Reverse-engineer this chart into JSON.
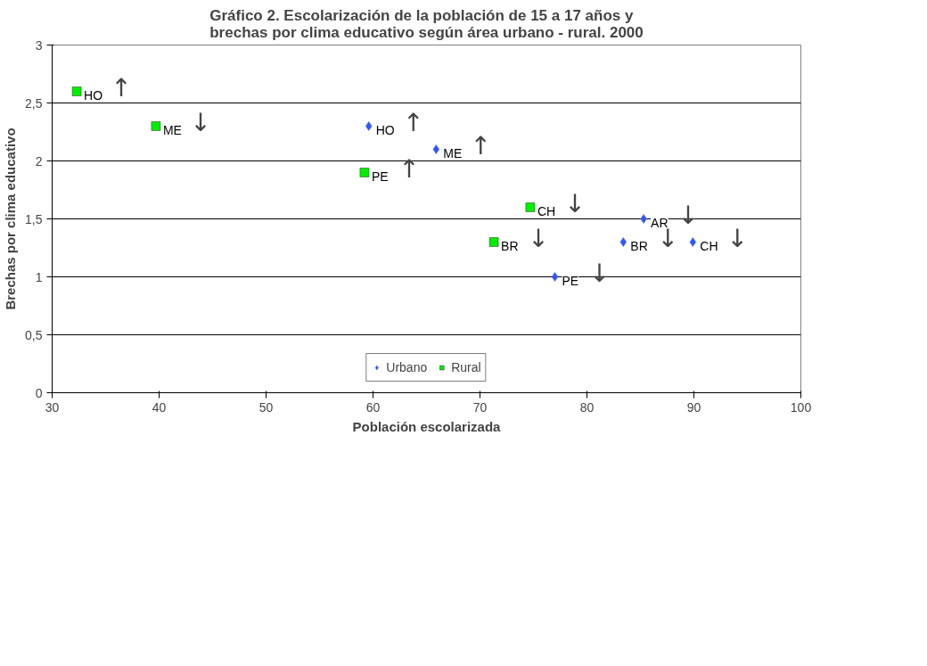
{
  "chart_data": {
    "type": "scatter",
    "title": "Gráfico 2. Escolarización de la población de 15 a 17 años y\nbrechas por clima educativo según área urbano - rural. 2000",
    "xlabel": "Población escolarizada",
    "ylabel": "Brechas por clima educativo",
    "xlim": [
      30,
      100
    ],
    "xticks": [
      30,
      40,
      50,
      60,
      70,
      80,
      90,
      100
    ],
    "ylim": [
      0,
      3
    ],
    "yticks": [
      0,
      {
        "value": 0.5,
        "label": "0,5"
      },
      1,
      {
        "value": 1.5,
        "label": "1,5"
      },
      2,
      {
        "value": 2.5,
        "label": "2,5"
      },
      3
    ],
    "grid": "y",
    "legend": "bottom",
    "annotations": [
      {
        "text": "↑",
        "x": 32.3,
        "y": 2.6
      },
      {
        "text": "↓",
        "x": 39.7,
        "y": 2.3
      },
      {
        "text": "↑",
        "x": 59.6,
        "y": 2.3
      },
      {
        "text": "↑",
        "x": 59.2,
        "y": 1.9
      },
      {
        "text": "↑",
        "x": 65.9,
        "y": 2.1
      },
      {
        "text": "↓",
        "x": 74.7,
        "y": 1.6
      },
      {
        "text": "↓",
        "x": 71.3,
        "y": 1.3
      },
      {
        "text": "↓",
        "x": 85.3,
        "y": 1.5
      },
      {
        "text": "↓",
        "x": 83.4,
        "y": 1.3
      },
      {
        "text": "↓",
        "x": 89.9,
        "y": 1.3
      },
      {
        "text": "↓",
        "x": 77.0,
        "y": 1.0
      }
    ],
    "series": [
      {
        "name": "Urbano",
        "color": "#3355ff",
        "marker": "diamond",
        "x": [
          59.6,
          65.9,
          77.0,
          83.4,
          85.3,
          89.9
        ],
        "values": [
          2.3,
          2.1,
          1.0,
          1.3,
          1.5,
          1.3
        ],
        "value_labels": [
          "HO",
          "ME",
          "PE",
          "BR",
          "AR",
          "CH"
        ]
      },
      {
        "name": "Rural",
        "color": "#00ee00",
        "marker": "square",
        "x": [
          32.3,
          39.7,
          59.2,
          71.3,
          74.7
        ],
        "values": [
          2.6,
          2.3,
          1.9,
          1.3,
          1.6
        ],
        "value_labels": [
          "HO",
          "ME",
          "PE",
          "BR",
          "CH"
        ]
      }
    ]
  }
}
